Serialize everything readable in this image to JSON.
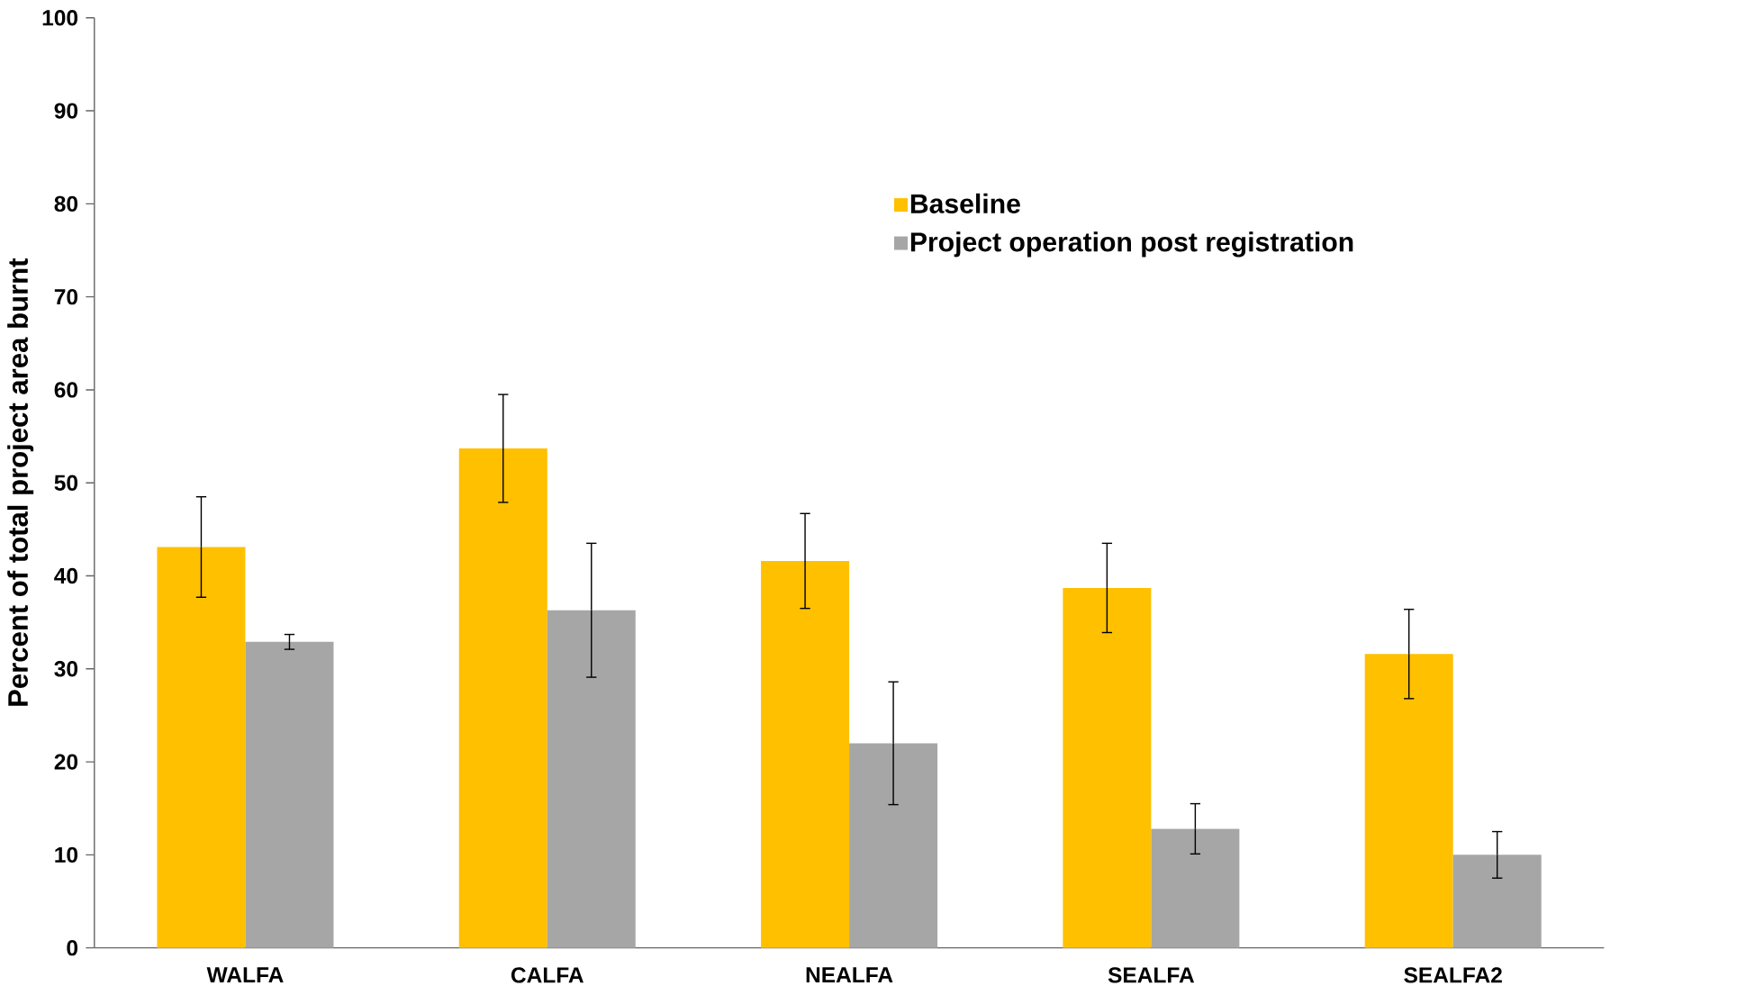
{
  "chart_data": {
    "type": "bar",
    "ylabel": "Percent of total project area burnt",
    "categories": [
      "WALFA",
      "CALFA",
      "NEALFA",
      "SEALFA",
      "SEALFA2"
    ],
    "series": [
      {
        "name": "Baseline",
        "color": "#ffc000",
        "values": [
          43.1,
          53.7,
          41.6,
          38.7,
          31.6
        ],
        "errors": [
          5.4,
          5.8,
          5.1,
          4.8,
          4.8
        ]
      },
      {
        "name": "Project operation post registration",
        "color": "#a6a6a6",
        "values": [
          32.9,
          36.3,
          22.0,
          12.8,
          10.0
        ],
        "errors": [
          0.8,
          7.2,
          6.6,
          2.7,
          2.5
        ]
      }
    ],
    "ylim": [
      0,
      100
    ],
    "yticks": [
      0,
      10,
      20,
      30,
      40,
      50,
      60,
      70,
      80,
      90,
      100
    ],
    "grid": false,
    "legend": "top right"
  }
}
